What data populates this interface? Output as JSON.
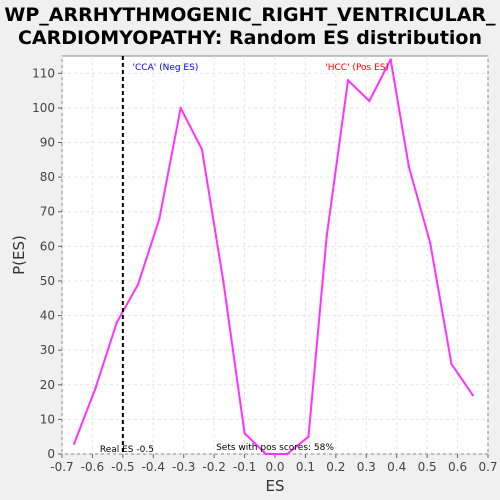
{
  "title_line1": "WP_ARRHYTHMOGENIC_RIGHT_VENTRICULAR_",
  "title_line2": "CARDIOMYOPATHY: Random ES distribution",
  "chart_data": {
    "type": "line",
    "xlabel": "ES",
    "ylabel": "P(ES)",
    "xlim": [
      -0.7,
      0.7
    ],
    "ylim": [
      0,
      115
    ],
    "x_ticks": [
      -0.7,
      -0.6,
      -0.5,
      -0.4,
      -0.3,
      -0.2,
      -0.1,
      0.0,
      0.1,
      0.2,
      0.3,
      0.4,
      0.5,
      0.6,
      0.7
    ],
    "x_tick_labels": [
      "-0.7",
      "-0.6",
      "-0.5",
      "-0.4",
      "-0.3",
      "-0.2",
      "-0.1",
      "0.0",
      "0.1",
      "0.2",
      "0.3",
      "0.4",
      "0.5",
      "0.6",
      "0.7"
    ],
    "y_ticks": [
      0,
      10,
      20,
      30,
      40,
      50,
      60,
      70,
      80,
      90,
      100,
      110
    ],
    "y_tick_labels": [
      "0",
      "10",
      "20",
      "30",
      "40",
      "50",
      "60",
      "70",
      "80",
      "90",
      "100",
      "110"
    ],
    "grid": true,
    "series_color": "#ff33ff",
    "series": [
      {
        "x": [
          -0.66,
          -0.59,
          -0.52,
          -0.45,
          -0.38,
          -0.31,
          -0.24,
          -0.17,
          -0.1,
          -0.03,
          0.04,
          0.11,
          0.17,
          0.24,
          0.31,
          0.38,
          0.44,
          0.51,
          0.58,
          0.65
        ],
        "values": [
          3,
          19,
          38,
          49,
          68,
          100,
          88,
          50,
          6,
          0,
          0,
          5,
          63,
          108,
          102,
          114,
          83,
          61,
          26,
          17
        ]
      }
    ],
    "real_es": {
      "x": -0.5,
      "label": "Real ES -0.5",
      "color": "#000000"
    },
    "annotations": {
      "neg_label": "'CCA' (Neg ES)",
      "neg_color": "#0000ff",
      "pos_label": "'HCC' (Pos ES)",
      "pos_color": "#ff0000",
      "sets_text": "Sets with pos scores: 58%"
    }
  }
}
